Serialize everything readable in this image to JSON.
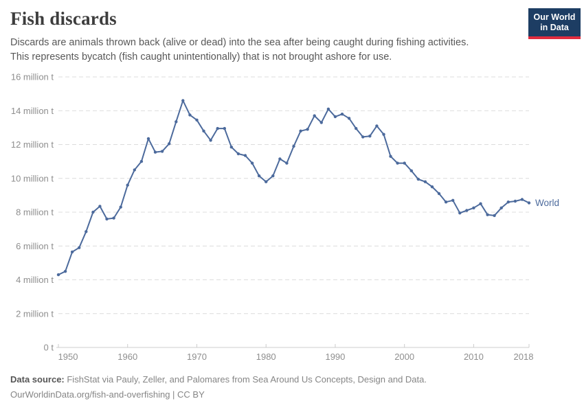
{
  "header": {
    "title": "Fish discards",
    "subtitle_line1": "Discards are animals thrown back (alive or dead) into the sea after being caught during fishing activities.",
    "subtitle_line2": "This represents bycatch (fish caught unintentionally) that is not brought ashore for use.",
    "logo": {
      "line1": "Our World",
      "line2": "in Data",
      "bg_color": "#1d3d63",
      "accent_color": "#e02c3f"
    }
  },
  "chart_data": {
    "type": "line",
    "title": "Fish discards",
    "ylabel": "",
    "xlabel": "",
    "unit": "million tonnes",
    "grid": "horizontal-dashed",
    "legend_position": "end-of-line",
    "xlim": [
      1950,
      2018
    ],
    "ylim": [
      0,
      16
    ],
    "x_ticks": [
      1950,
      1960,
      1970,
      1980,
      1990,
      2000,
      2010,
      2018
    ],
    "y_ticks": [
      {
        "value": 0,
        "label": "0 t"
      },
      {
        "value": 2,
        "label": "2 million t"
      },
      {
        "value": 4,
        "label": "4 million t"
      },
      {
        "value": 6,
        "label": "6 million t"
      },
      {
        "value": 8,
        "label": "8 million t"
      },
      {
        "value": 10,
        "label": "10 million t"
      },
      {
        "value": 12,
        "label": "12 million t"
      },
      {
        "value": 14,
        "label": "14 million t"
      },
      {
        "value": 16,
        "label": "16 million t"
      }
    ],
    "series": [
      {
        "name": "World",
        "color": "#4C6A9C",
        "x": [
          1950,
          1951,
          1952,
          1953,
          1954,
          1955,
          1956,
          1957,
          1958,
          1959,
          1960,
          1961,
          1962,
          1963,
          1964,
          1965,
          1966,
          1967,
          1968,
          1969,
          1970,
          1971,
          1972,
          1973,
          1974,
          1975,
          1976,
          1977,
          1978,
          1979,
          1980,
          1981,
          1982,
          1983,
          1984,
          1985,
          1986,
          1987,
          1988,
          1989,
          1990,
          1991,
          1992,
          1993,
          1994,
          1995,
          1996,
          1997,
          1998,
          1999,
          2000,
          2001,
          2002,
          2003,
          2004,
          2005,
          2006,
          2007,
          2008,
          2009,
          2010,
          2011,
          2012,
          2013,
          2014,
          2015,
          2016,
          2017,
          2018
        ],
        "values": [
          4.3,
          4.5,
          5.65,
          5.9,
          6.85,
          8.0,
          8.35,
          7.6,
          7.65,
          8.3,
          9.6,
          10.5,
          11.0,
          12.35,
          11.55,
          11.6,
          12.05,
          13.35,
          14.6,
          13.75,
          13.45,
          12.8,
          12.25,
          12.95,
          12.95,
          11.85,
          11.45,
          11.35,
          10.9,
          10.15,
          9.8,
          10.15,
          11.15,
          10.9,
          11.9,
          12.8,
          12.9,
          13.7,
          13.3,
          14.1,
          13.65,
          13.8,
          13.55,
          12.95,
          12.45,
          12.5,
          13.1,
          12.6,
          11.3,
          10.9,
          10.9,
          10.45,
          9.95,
          9.8,
          9.5,
          9.1,
          8.6,
          8.7,
          7.95,
          8.1,
          8.25,
          8.5,
          7.85,
          7.8,
          8.25,
          8.6,
          8.65,
          8.75,
          8.55
        ]
      }
    ]
  },
  "footer": {
    "source_label": "Data source:",
    "source_text": " FishStat via Pauly, Zeller, and Palomares from Sea Around Us Concepts, Design and Data.",
    "license_line": "OurWorldinData.org/fish-and-overfishing | CC BY"
  }
}
